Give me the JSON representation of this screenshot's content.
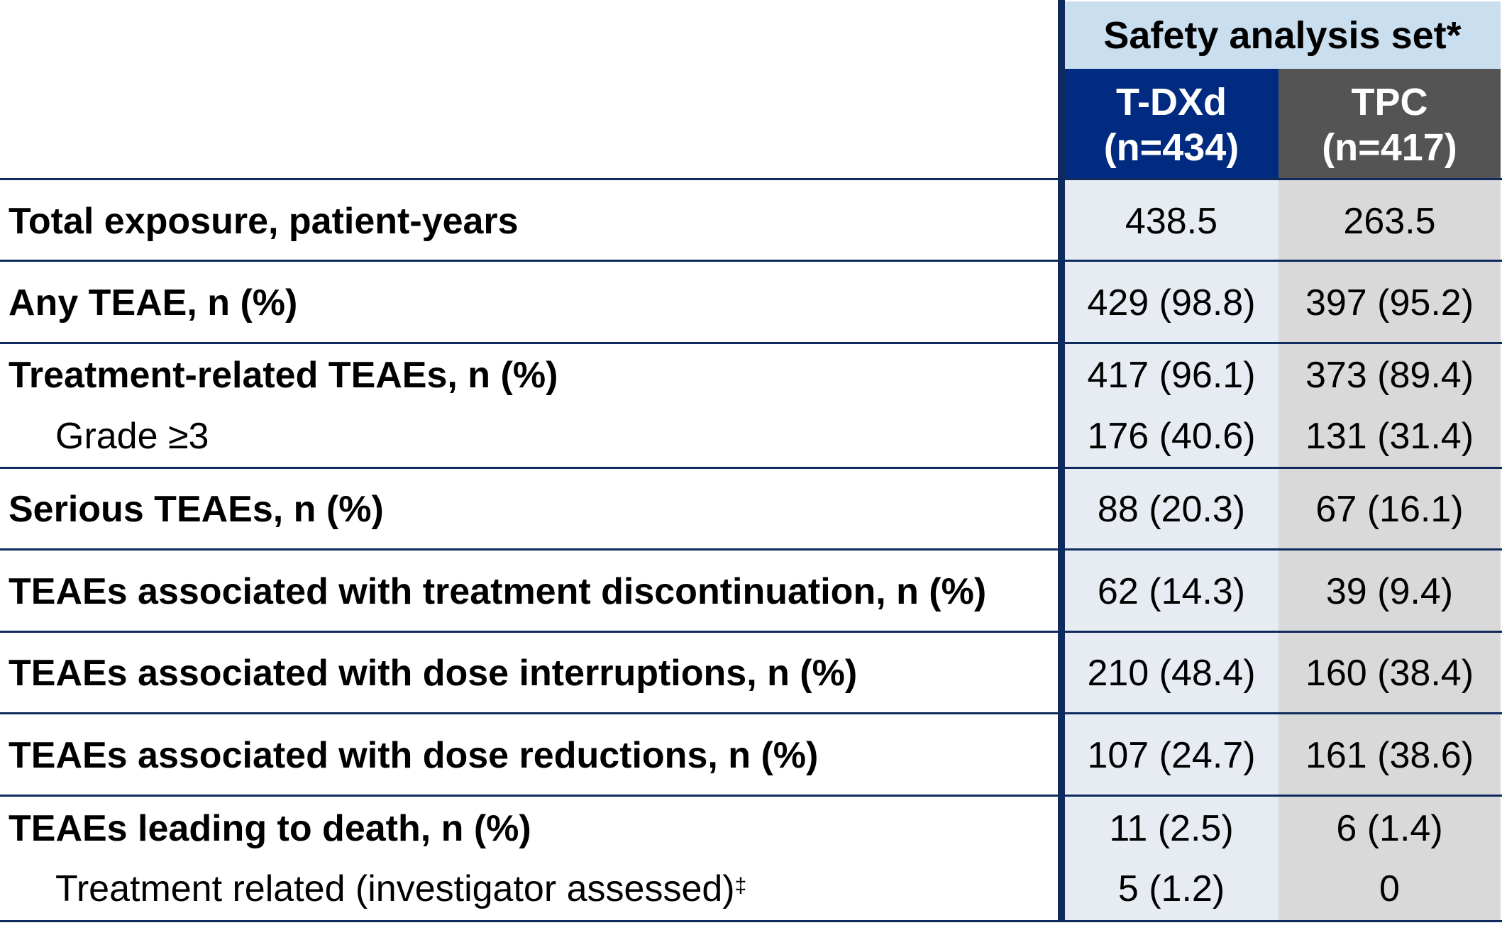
{
  "header": {
    "group_title": "Safety analysis set*",
    "columns": [
      {
        "name": "T-DXd",
        "n": "(n=434)",
        "color": "#002b80"
      },
      {
        "name": "TPC",
        "n": "(n=417)",
        "color": "#545454"
      }
    ]
  },
  "rows": [
    {
      "label": "Total exposure, patient-years",
      "tdxd": "438.5",
      "tpc": "263.5"
    },
    {
      "label": "Any TEAE, n (%)",
      "tdxd": "429 (98.8)",
      "tpc": "397 (95.2)"
    },
    {
      "label": "Treatment-related TEAEs, n (%)",
      "tdxd": "417 (96.1)",
      "tpc": "373 (89.4)",
      "sub": {
        "label": "Grade ≥3",
        "tdxd": "176 (40.6)",
        "tpc": "131 (31.4)"
      }
    },
    {
      "label": "Serious TEAEs, n (%)",
      "tdxd": "88 (20.3)",
      "tpc": "67 (16.1)"
    },
    {
      "label": "TEAEs associated with treatment discontinuation, n (%)",
      "tdxd": "62 (14.3)",
      "tpc": "39 (9.4)"
    },
    {
      "label": "TEAEs associated with dose interruptions, n (%)",
      "tdxd": "210 (48.4)",
      "tpc": "160 (38.4)"
    },
    {
      "label": "TEAEs associated with dose reductions, n (%)",
      "tdxd": "107 (24.7)",
      "tpc": "161 (38.6)"
    },
    {
      "label": "TEAEs leading to death, n (%)",
      "tdxd": "11 (2.5)",
      "tpc": "6 (1.4)",
      "sub": {
        "label": "Treatment related (investigator assessed)",
        "footnote": "‡",
        "tdxd": "5 (1.2)",
        "tpc": "0"
      }
    }
  ]
}
